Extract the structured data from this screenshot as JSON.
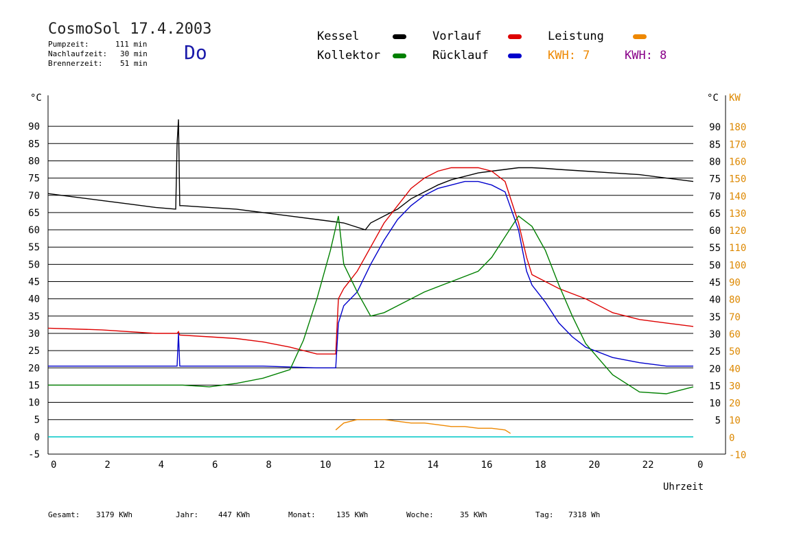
{
  "header": {
    "title": "CosmoSol 17.4.2003",
    "stats": [
      {
        "label": "Pumpzeit:",
        "value": "111 min"
      },
      {
        "label": "Nachlaufzeit:",
        "value": "30 min"
      },
      {
        "label": "Brennerzeit:",
        "value": "51 min"
      }
    ],
    "weekday": "Do"
  },
  "legend": {
    "items": [
      {
        "label": "Kessel",
        "color": "#000000"
      },
      {
        "label": "Vorlauf",
        "color": "#dd0000"
      },
      {
        "label": "Leistung",
        "color": "#ee8800"
      },
      {
        "label": "Kollektor",
        "color": "#008000"
      },
      {
        "label": "Rücklauf",
        "color": "#0000cc"
      }
    ],
    "kwh": [
      {
        "label": "KWH: 7",
        "color": "#ee8800"
      },
      {
        "label": "KWH: 8",
        "color": "#880088"
      }
    ]
  },
  "footer": [
    {
      "label": "Gesamt:",
      "value": "3179 KWh"
    },
    {
      "label": "Jahr:",
      "value": "447 KWh"
    },
    {
      "label": "Monat:",
      "value": "135 KWh"
    },
    {
      "label": "Woche:",
      "value": "35 KWh"
    },
    {
      "label": "Tag:",
      "value": "7318 Wh"
    }
  ],
  "chart_data": {
    "type": "line",
    "title": "CosmoSol 17.4.2003",
    "xlabel": "Uhrzeit",
    "ylabel_left": "°C",
    "ylabel_right": "KW",
    "xlim": [
      0,
      24
    ],
    "ylim_left": [
      -5,
      95
    ],
    "ylim_right": [
      -10,
      190
    ],
    "x_ticks": [
      "0",
      "2",
      "4",
      "6",
      "8",
      "10",
      "12",
      "14",
      "16",
      "18",
      "20",
      "22",
      "0"
    ],
    "y_ticks_left": [
      "-5",
      "0",
      "5",
      "10",
      "15",
      "20",
      "25",
      "30",
      "35",
      "40",
      "45",
      "50",
      "55",
      "60",
      "65",
      "70",
      "75",
      "80",
      "85",
      "90"
    ],
    "y_ticks_right_c": [
      "5",
      "10",
      "15",
      "20",
      "25",
      "30",
      "35",
      "40",
      "45",
      "50",
      "55",
      "60",
      "65",
      "70",
      "75",
      "80",
      "85",
      "90"
    ],
    "y_ticks_right_kw": [
      "-10",
      "0",
      "10",
      "20",
      "30",
      "40",
      "50",
      "60",
      "70",
      "80",
      "90",
      "100",
      "110",
      "120",
      "130",
      "140",
      "150",
      "160",
      "170",
      "180"
    ],
    "grid": true,
    "series": [
      {
        "name": "Kessel",
        "color": "#000000",
        "x": [
          0,
          1,
          2,
          3,
          4,
          4.75,
          4.8,
          4.85,
          4.9,
          5.0,
          6,
          7,
          8,
          9,
          10,
          11,
          11.8,
          12,
          12.5,
          13,
          13.5,
          14,
          14.5,
          15,
          15.5,
          16,
          16.5,
          17,
          17.5,
          18,
          18.5,
          19,
          20,
          21,
          22,
          23,
          24
        ],
        "y": [
          70.5,
          69.5,
          68.5,
          67.5,
          66.5,
          66,
          85,
          92,
          67,
          67,
          66.5,
          66,
          65,
          64,
          63,
          62,
          60,
          62,
          64,
          66,
          69,
          71,
          73,
          74.5,
          75.5,
          76.5,
          77,
          77.5,
          78,
          78,
          77.8,
          77.5,
          77,
          76.5,
          76,
          75,
          74
        ]
      },
      {
        "name": "Vorlauf",
        "color": "#dd0000",
        "x": [
          0,
          2,
          4,
          4.8,
          4.85,
          4.9,
          6,
          7,
          8,
          9,
          10,
          10.7,
          10.8,
          11,
          11.5,
          12,
          12.5,
          13,
          13.5,
          14,
          14.5,
          15,
          15.5,
          16,
          16.5,
          17,
          17.5,
          17.8,
          18,
          18.5,
          19,
          20,
          21,
          22,
          23,
          24
        ],
        "y": [
          31.5,
          31,
          30,
          30,
          30.5,
          29.5,
          29,
          28.5,
          27.5,
          26,
          24,
          24,
          40,
          43,
          48,
          55,
          62,
          67,
          72,
          75,
          77,
          78,
          78,
          78,
          77,
          74,
          62,
          52,
          47,
          45,
          43,
          40,
          36,
          34,
          33,
          32
        ]
      },
      {
        "name": "Rücklauf",
        "color": "#0000cc",
        "x": [
          0,
          2,
          4,
          4.8,
          4.85,
          4.9,
          6,
          8,
          10,
          10.7,
          10.8,
          11,
          11.5,
          12,
          12.5,
          13,
          13.5,
          14,
          14.5,
          15,
          15.5,
          16,
          16.5,
          17,
          17.5,
          17.8,
          18,
          18.5,
          19,
          19.5,
          20,
          21,
          22,
          23,
          24
        ],
        "y": [
          20.5,
          20.5,
          20.5,
          20.5,
          30,
          20.5,
          20.5,
          20.5,
          20,
          20,
          33,
          38,
          42,
          50,
          57,
          63,
          67,
          70,
          72,
          73,
          74,
          74,
          73,
          71,
          60,
          48,
          44,
          39,
          33,
          29,
          26,
          23,
          21.5,
          20.5,
          20.5
        ]
      },
      {
        "name": "Kollektor",
        "color": "#008000",
        "x": [
          0,
          1,
          2,
          3,
          4,
          4.8,
          5,
          6,
          7,
          8,
          9,
          9.5,
          10,
          10.5,
          10.8,
          11,
          11.5,
          12,
          12.5,
          13,
          14,
          15,
          16,
          16.5,
          17,
          17.5,
          18,
          18.5,
          19,
          19.5,
          20,
          21,
          22,
          23,
          24
        ],
        "y": [
          15,
          15,
          15,
          15,
          15,
          15,
          15,
          14.5,
          15.5,
          17,
          19.5,
          28,
          40,
          54,
          64,
          50,
          42,
          35,
          36,
          38,
          42,
          45,
          48,
          52,
          58,
          64,
          61,
          54,
          44,
          35,
          27,
          18,
          13,
          12.5,
          14.5
        ]
      },
      {
        "name": "Leistung",
        "color": "#ee8800",
        "x": [
          10.7,
          11,
          11.5,
          12,
          12.5,
          13,
          13.5,
          14,
          14.5,
          15,
          15.5,
          16,
          16.5,
          17,
          17.2
        ],
        "y": [
          2,
          4,
          5,
          5,
          5,
          4.5,
          4,
          4,
          3.5,
          3,
          3,
          2.5,
          2.5,
          2,
          1
        ]
      }
    ]
  }
}
